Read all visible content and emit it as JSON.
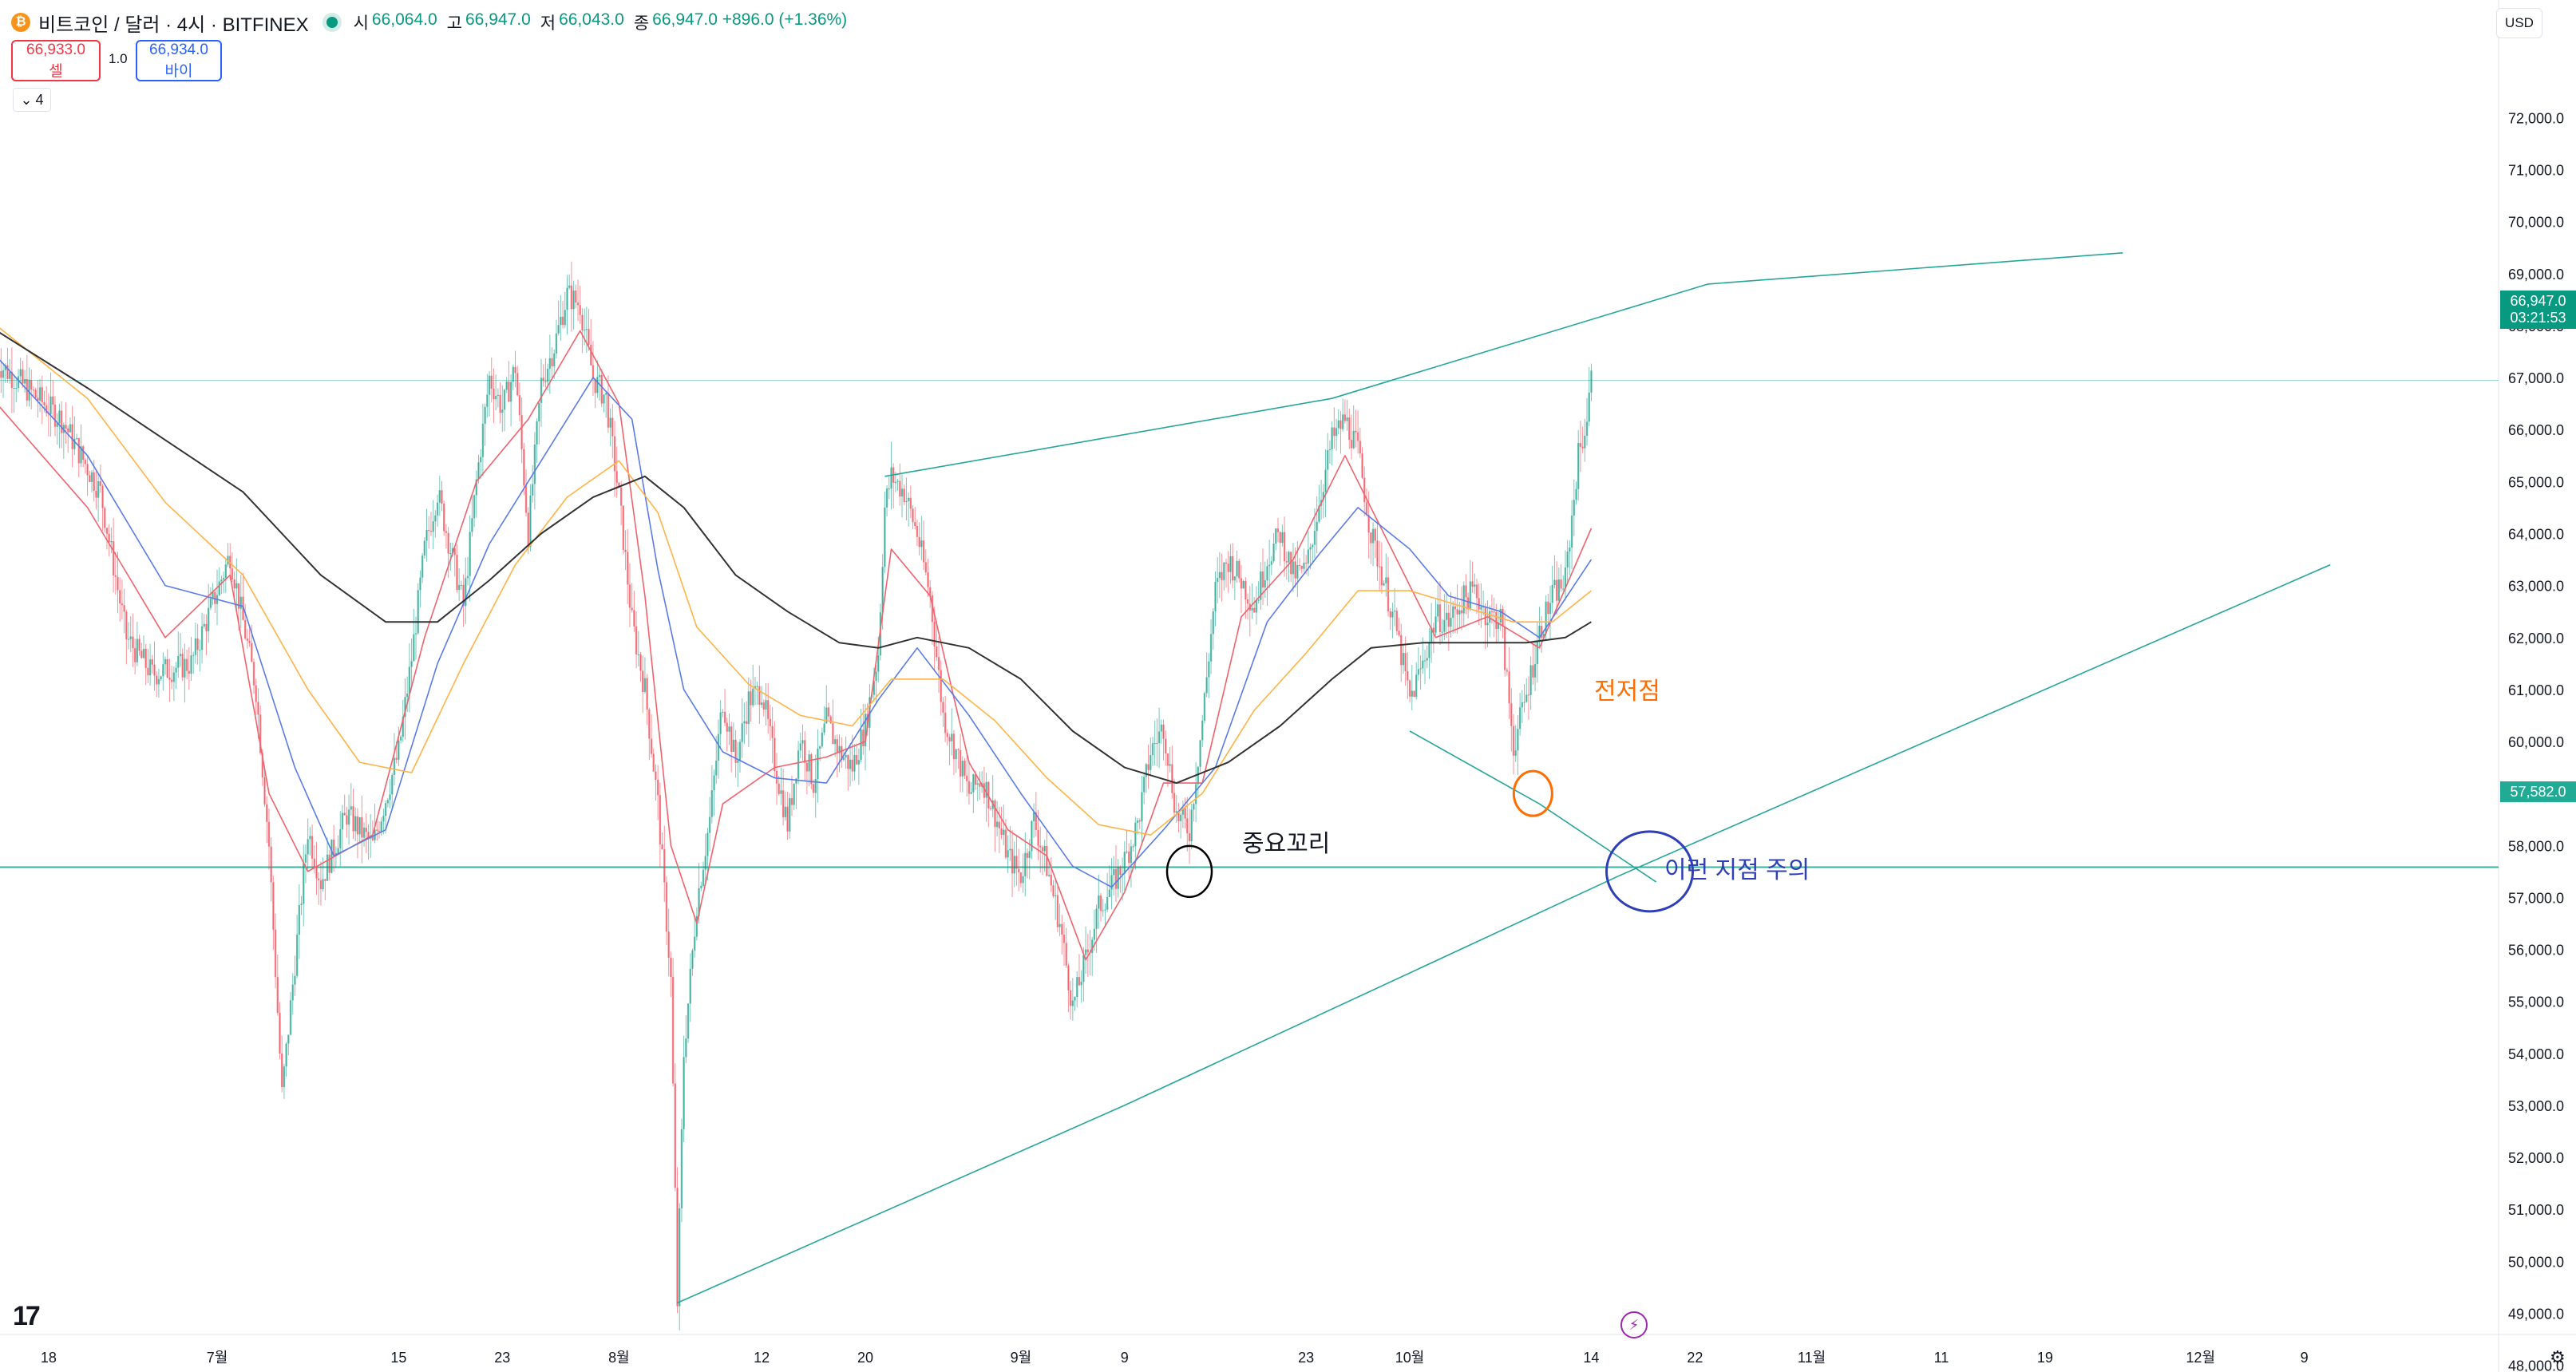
{
  "header": {
    "symbol_text": "비트코인 / 달러 · 4시 · BITFINEX",
    "coin_icon": "bitcoin-icon",
    "ohlc": [
      {
        "k": "시",
        "v": "66,064.0"
      },
      {
        "k": "고",
        "v": "66,947.0"
      },
      {
        "k": "저",
        "v": "66,043.0"
      },
      {
        "k": "종",
        "v": "66,947.0 +896.0 (+1.36%)"
      }
    ]
  },
  "trade": {
    "sell_price": "66,933.0",
    "sell_label": "셀",
    "spread": "1.0",
    "buy_price": "66,934.0",
    "buy_label": "바이"
  },
  "indicator_toggle": "4",
  "currency": "USD",
  "tags": {
    "last_price": "66,947.0",
    "countdown": "03:21:53",
    "level": "57,582.0"
  },
  "annotations": {
    "important_wick": "중요꼬리",
    "previous_low": "전저점",
    "watch_point": "이런 지점 주의"
  },
  "colors": {
    "up": "#089981",
    "down": "#f23645",
    "ma_red": "#f0636d",
    "ma_blue": "#5b7be8",
    "ma_orange": "#ffb347",
    "ma_black": "#333333",
    "trendline": "#26a69a",
    "circle_black": "#000000",
    "circle_orange": "#ff6d00",
    "circle_blue": "#2f3fb8"
  },
  "chart_data": {
    "type": "candlestick",
    "timeframe": "4h",
    "y_axis": {
      "range": [
        47500,
        72000
      ],
      "ticks": [
        "72,000.0",
        "71,000.0",
        "70,000.0",
        "69,000.0",
        "68,000.0",
        "67,000.0",
        "66,000.0",
        "65,000.0",
        "64,000.0",
        "63,000.0",
        "62,000.0",
        "61,000.0",
        "60,000.0",
        "59,000.0",
        "58,000.0",
        "57,000.0",
        "56,000.0",
        "55,000.0",
        "54,000.0",
        "53,000.0",
        "52,000.0",
        "51,000.0",
        "50,000.0",
        "49,000.0",
        "48,000.0"
      ],
      "tick_values": [
        72000,
        71000,
        70000,
        69000,
        68000,
        67000,
        66000,
        65000,
        64000,
        63000,
        62000,
        61000,
        60000,
        59000,
        58000,
        57000,
        56000,
        55000,
        54000,
        53000,
        52000,
        51000,
        50000,
        49000,
        48000
      ]
    },
    "x_axis": {
      "labels": [
        "18",
        "7월",
        "15",
        "23",
        "8월",
        "12",
        "20",
        "9월",
        "9",
        "23",
        "10월",
        "14",
        "22",
        "11월",
        "11",
        "19",
        "12월",
        "9"
      ],
      "label_days": [
        -13,
        0,
        14,
        22,
        31,
        42,
        50,
        62,
        70,
        84,
        92,
        106,
        114,
        123,
        133,
        141,
        153,
        161
      ]
    },
    "price_path": [
      [
        -17,
        67300
      ],
      [
        -12,
        66200
      ],
      [
        -9,
        64800
      ],
      [
        -7,
        62000
      ],
      [
        -5,
        61300
      ],
      [
        -2,
        61500
      ],
      [
        1,
        63600
      ],
      [
        3,
        61000
      ],
      [
        4,
        58000
      ],
      [
        5,
        53200
      ],
      [
        7,
        58300
      ],
      [
        8,
        57300
      ],
      [
        10,
        58600
      ],
      [
        12,
        58000
      ],
      [
        14,
        59800
      ],
      [
        15,
        61600
      ],
      [
        16,
        63700
      ],
      [
        17,
        64800
      ],
      [
        19,
        62600
      ],
      [
        20,
        65000
      ],
      [
        21,
        67000
      ],
      [
        22,
        66400
      ],
      [
        23,
        67200
      ],
      [
        24,
        64000
      ],
      [
        25,
        66900
      ],
      [
        26,
        67600
      ],
      [
        27,
        68600
      ],
      [
        28,
        68400
      ],
      [
        29,
        67000
      ],
      [
        30,
        66600
      ],
      [
        31,
        64700
      ],
      [
        32,
        62300
      ],
      [
        33,
        61000
      ],
      [
        34,
        58800
      ],
      [
        35,
        55400
      ],
      [
        35.5,
        49200
      ],
      [
        36,
        54000
      ],
      [
        37,
        56900
      ],
      [
        38,
        58500
      ],
      [
        39,
        60800
      ],
      [
        40,
        59600
      ],
      [
        41,
        60800
      ],
      [
        42,
        61000
      ],
      [
        43,
        59600
      ],
      [
        44,
        58400
      ],
      [
        45,
        60100
      ],
      [
        46,
        59200
      ],
      [
        47,
        60400
      ],
      [
        48,
        59800
      ],
      [
        49,
        59500
      ],
      [
        50,
        60300
      ],
      [
        51,
        61700
      ],
      [
        51.5,
        64500
      ],
      [
        52,
        65100
      ],
      [
        53,
        64800
      ],
      [
        54,
        64000
      ],
      [
        55,
        62800
      ],
      [
        56,
        60500
      ],
      [
        57,
        59800
      ],
      [
        58,
        59000
      ],
      [
        59,
        59300
      ],
      [
        60,
        58600
      ],
      [
        61,
        57800
      ],
      [
        62,
        57400
      ],
      [
        63,
        58500
      ],
      [
        64,
        57600
      ],
      [
        65,
        56500
      ],
      [
        66,
        54900
      ],
      [
        67,
        55800
      ],
      [
        68,
        56800
      ],
      [
        69,
        57200
      ],
      [
        70,
        57700
      ],
      [
        71,
        58400
      ],
      [
        72,
        59800
      ],
      [
        73,
        60300
      ],
      [
        74,
        58600
      ],
      [
        75,
        58300
      ],
      [
        76,
        60400
      ],
      [
        77,
        62900
      ],
      [
        78,
        63500
      ],
      [
        79,
        63100
      ],
      [
        80,
        62600
      ],
      [
        81,
        63500
      ],
      [
        82,
        64000
      ],
      [
        83,
        63200
      ],
      [
        84,
        63300
      ],
      [
        85,
        64600
      ],
      [
        86,
        65800
      ],
      [
        87,
        66200
      ],
      [
        88,
        65600
      ],
      [
        89,
        64000
      ],
      [
        90,
        63100
      ],
      [
        91,
        62100
      ],
      [
        92,
        60800
      ],
      [
        93,
        61500
      ],
      [
        94,
        62400
      ],
      [
        95,
        62300
      ],
      [
        96,
        62700
      ],
      [
        97,
        62900
      ],
      [
        98,
        62400
      ],
      [
        99,
        62400
      ],
      [
        100,
        59900
      ],
      [
        101,
        60900
      ],
      [
        102,
        62100
      ],
      [
        103,
        62800
      ],
      [
        104,
        63100
      ],
      [
        105,
        65500
      ],
      [
        105.6,
        66100
      ],
      [
        106,
        66947
      ]
    ],
    "moving_averages": [
      {
        "color": "red",
        "values": [
          [
            -17,
            66500
          ],
          [
            -10,
            64500
          ],
          [
            -4,
            62000
          ],
          [
            1,
            63200
          ],
          [
            4,
            59000
          ],
          [
            7,
            57500
          ],
          [
            12,
            58200
          ],
          [
            16,
            62000
          ],
          [
            20,
            65000
          ],
          [
            24,
            66200
          ],
          [
            28,
            67900
          ],
          [
            31,
            66500
          ],
          [
            33,
            62800
          ],
          [
            35,
            58000
          ],
          [
            37,
            56500
          ],
          [
            39,
            58800
          ],
          [
            43,
            59500
          ],
          [
            47,
            59700
          ],
          [
            50,
            60000
          ],
          [
            52,
            63700
          ],
          [
            55,
            62800
          ],
          [
            58,
            59600
          ],
          [
            61,
            58300
          ],
          [
            64,
            57800
          ],
          [
            67,
            55800
          ],
          [
            70,
            57100
          ],
          [
            73,
            59200
          ],
          [
            76,
            59200
          ],
          [
            79,
            62400
          ],
          [
            83,
            63500
          ],
          [
            87,
            65500
          ],
          [
            91,
            63500
          ],
          [
            94,
            62000
          ],
          [
            98,
            62400
          ],
          [
            102,
            61800
          ],
          [
            106,
            64100
          ]
        ]
      },
      {
        "color": "blue",
        "values": [
          [
            -17,
            67400
          ],
          [
            -10,
            65500
          ],
          [
            -4,
            63000
          ],
          [
            2,
            62600
          ],
          [
            6,
            59500
          ],
          [
            9,
            57800
          ],
          [
            13,
            58300
          ],
          [
            17,
            61500
          ],
          [
            21,
            63800
          ],
          [
            25,
            65400
          ],
          [
            29,
            67000
          ],
          [
            32,
            66200
          ],
          [
            34,
            63300
          ],
          [
            36,
            61000
          ],
          [
            39,
            59800
          ],
          [
            43,
            59300
          ],
          [
            47,
            59200
          ],
          [
            51,
            60800
          ],
          [
            54,
            61800
          ],
          [
            58,
            60500
          ],
          [
            62,
            59000
          ],
          [
            66,
            57600
          ],
          [
            69,
            57200
          ],
          [
            73,
            58300
          ],
          [
            77,
            59500
          ],
          [
            81,
            62300
          ],
          [
            85,
            63600
          ],
          [
            88,
            64500
          ],
          [
            92,
            63700
          ],
          [
            95,
            62800
          ],
          [
            99,
            62500
          ],
          [
            102,
            62000
          ],
          [
            106,
            63500
          ]
        ]
      },
      {
        "color": "orange",
        "values": [
          [
            -17,
            68000
          ],
          [
            -10,
            66600
          ],
          [
            -4,
            64600
          ],
          [
            2,
            63200
          ],
          [
            7,
            61000
          ],
          [
            11,
            59600
          ],
          [
            15,
            59400
          ],
          [
            19,
            61500
          ],
          [
            23,
            63400
          ],
          [
            27,
            64700
          ],
          [
            31,
            65400
          ],
          [
            34,
            64400
          ],
          [
            37,
            62200
          ],
          [
            41,
            61100
          ],
          [
            45,
            60500
          ],
          [
            49,
            60300
          ],
          [
            52,
            61200
          ],
          [
            56,
            61200
          ],
          [
            60,
            60400
          ],
          [
            64,
            59300
          ],
          [
            68,
            58400
          ],
          [
            72,
            58200
          ],
          [
            76,
            59000
          ],
          [
            80,
            60600
          ],
          [
            84,
            61700
          ],
          [
            88,
            62900
          ],
          [
            92,
            62900
          ],
          [
            96,
            62600
          ],
          [
            100,
            62300
          ],
          [
            103,
            62300
          ],
          [
            106,
            62900
          ]
        ]
      },
      {
        "color": "black",
        "values": [
          [
            -17,
            67900
          ],
          [
            -10,
            66800
          ],
          [
            -4,
            65800
          ],
          [
            2,
            64800
          ],
          [
            8,
            63200
          ],
          [
            13,
            62300
          ],
          [
            17,
            62300
          ],
          [
            21,
            63100
          ],
          [
            25,
            64000
          ],
          [
            29,
            64700
          ],
          [
            33,
            65100
          ],
          [
            36,
            64500
          ],
          [
            40,
            63200
          ],
          [
            44,
            62500
          ],
          [
            48,
            61900
          ],
          [
            51,
            61800
          ],
          [
            54,
            62000
          ],
          [
            58,
            61800
          ],
          [
            62,
            61200
          ],
          [
            66,
            60200
          ],
          [
            70,
            59500
          ],
          [
            74,
            59200
          ],
          [
            78,
            59600
          ],
          [
            82,
            60300
          ],
          [
            86,
            61200
          ],
          [
            89,
            61800
          ],
          [
            93,
            61900
          ],
          [
            97,
            61900
          ],
          [
            101,
            61900
          ],
          [
            104,
            62000
          ],
          [
            106,
            62300
          ]
        ]
      }
    ],
    "horizontal_lines": [
      57582,
      66947
    ],
    "trendlines": [
      {
        "name": "upper-resistance",
        "points": [
          [
            51.5,
            65100
          ],
          [
            86,
            66600
          ],
          [
            115,
            68800
          ],
          [
            147,
            69400
          ]
        ]
      },
      {
        "name": "lower-support",
        "points": [
          [
            35.5,
            49200
          ],
          [
            70,
            53000
          ],
          [
            108,
            57400
          ],
          [
            163,
            63400
          ]
        ]
      },
      {
        "name": "descending-from-high",
        "points": [
          [
            92,
            60200
          ],
          [
            102,
            58800
          ],
          [
            111,
            57300
          ]
        ]
      }
    ],
    "circles": [
      {
        "name": "important-wick",
        "at": [
          75,
          57500
        ],
        "label": "중요꼬리"
      },
      {
        "name": "previous-low",
        "at": [
          101.5,
          59000
        ],
        "label": "전저점"
      },
      {
        "name": "watch-point",
        "at": [
          110.5,
          57500
        ],
        "label": "이런 지점 주의"
      }
    ]
  }
}
